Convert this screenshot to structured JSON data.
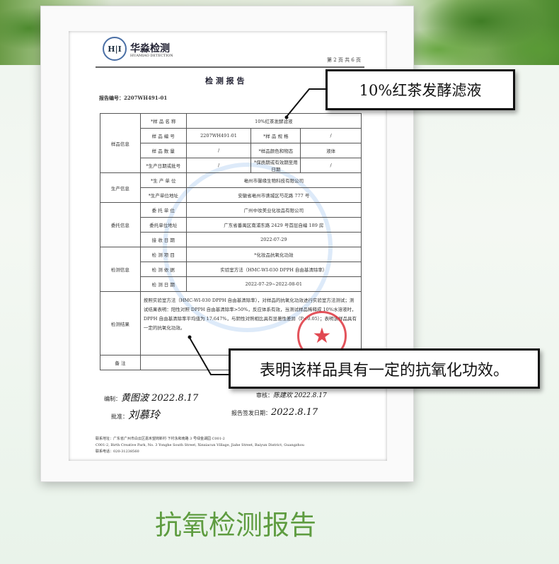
{
  "report": {
    "logo_mark": "H|I",
    "brand_cn": "华淼检测",
    "brand_en": "HUAMIAO DETECTION",
    "page_info": "第 2 页 共 6 页",
    "title": "检 测 报 告",
    "report_no": "报告编号：2207WH491-01",
    "sample": {
      "group": "样品信息",
      "name_label": "*样 品 名 称",
      "name_value": "10%红茶发酵滤液",
      "code_label": "样 品 编 号",
      "code_value": "2207WH491-01",
      "spec_label": "*样 品 规 格",
      "spec_value": "/",
      "qty_label": "样 品 数 量",
      "qty_value": "/",
      "color_label": "*样品颜色和物态",
      "color_value": "液体",
      "date_label": "*生产日期或批号",
      "date_value": "/",
      "expiry_label": "*保质期或有效期至用日期",
      "expiry_value": "/"
    },
    "production": {
      "group": "生产信息",
      "unit_label": "*生 产 单 位",
      "unit_value": "亳州市馨缘生物科技有限公司",
      "addr_label": "*生产单位地址",
      "addr_value": "安徽省亳州市谯城区芍花路 777 号"
    },
    "client": {
      "group": "委托信息",
      "unit_label": "委 托 单 位",
      "unit_value": "广州中妆美业化妆品有限公司",
      "addr_label": "委托单位地址",
      "addr_value": "广东省番禺区南浦东路 2429 号首层自编 189 房",
      "recv_label": "接 收 日 期",
      "recv_value": "2022-07-29"
    },
    "testing": {
      "group": "检测信息",
      "item_label": "检 测 项 目",
      "item_value": "*化妆品抗氧化功效",
      "method_label": "检 测 依 据",
      "method_value": "实验室方法（HMC-WI-030 DPPH 自由基清除率）",
      "date_label": "检 测 日 期",
      "date_value": "2022-07-29~2022-08-01"
    },
    "result": {
      "group": "检测结果",
      "text": "按照实验室方法（HMC-WI-030 DPPH 自由基清除率），对样品的抗氧化功效进行实验室方法测试；测试结果表明：阳性对照 DPPH 自由基清除率>50%，反应体系有效，当测试样品稀释成 10%水溶液时，DPPH 自由基清除率平均值为 17.647%，与阴性对照相比具有显著性差异（P<0.05）；表明该样品具有一定的抗氧化功效。"
    },
    "remarks": {
      "group": "备 注",
      "value": ""
    },
    "signatures": {
      "editor_label": "编制：",
      "editor_sig": "黄图波 2022.8.17",
      "reviewer_label": "审核：",
      "reviewer_sig": "陈建欢 2022.8.17",
      "approver_label": "批准：",
      "approver_sig": "刘慕玲",
      "issue_label": "报告签发日期：",
      "issue_date": "2022.8.17"
    },
    "footer": {
      "addr_cn": "联系地址：广东省广州市白云区嘉禾望岗新村·下村永和南路 3 号绿金湖园 C001-2",
      "addr_en": "C001-2, Birth Creative Park, No. 3 Yonghe South Street, Xinxiacun Village, Jiahe Street, Baiyun District, Guangzhou",
      "phone": "联系电话：020-31238560"
    },
    "stamp_glyph": "★"
  },
  "callouts": {
    "sample_name": "10%红茶发酵滤液",
    "conclusion": "表明该样品具有一定的抗氧化功效。"
  },
  "caption": "抗氧检测报告",
  "colors": {
    "caption": "#5e9c40",
    "stamp": "#dc2832"
  }
}
